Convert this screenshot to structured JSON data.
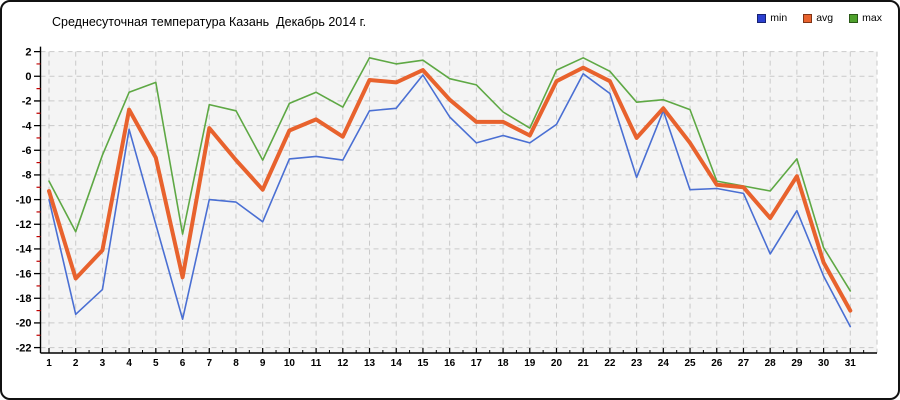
{
  "frame": {
    "title": "Среднесуточная температура Казань  Декабрь 2014 г."
  },
  "legend": [
    {
      "label": "min",
      "color": "#2b3fd0"
    },
    {
      "label": "avg",
      "color": "#e8622d"
    },
    {
      "label": "max",
      "color": "#4ea12c"
    }
  ],
  "chart_data": {
    "type": "line",
    "title": "Среднесуточная температура Казань  Декабрь 2014 г.",
    "x_tick_labels": [
      1,
      2,
      3,
      4,
      5,
      6,
      7,
      8,
      9,
      10,
      11,
      12,
      13,
      14,
      15,
      16,
      17,
      18,
      19,
      20,
      21,
      22,
      23,
      24,
      25,
      26,
      27,
      28,
      29,
      30,
      31
    ],
    "y_tick_labels": [
      2,
      0,
      -2,
      -4,
      -6,
      -8,
      -10,
      -12,
      -14,
      -16,
      -18,
      -20,
      -22
    ],
    "ylim": [
      -22,
      2
    ],
    "xlim": [
      1,
      31
    ],
    "grid": true,
    "legend_position": "top-right",
    "plot_bg": "#f4f4f4",
    "grid_color": "#c9c9c9",
    "axis_color": "#000000",
    "minor_tick_color": "#c00000",
    "series": [
      {
        "name": "max",
        "color": "#5ea844",
        "width": 1.6,
        "values": [
          -8.5,
          -12.6,
          -6.4,
          -1.3,
          -0.5,
          -12.8,
          -2.3,
          -2.8,
          -6.8,
          -2.2,
          -1.3,
          -2.5,
          1.5,
          1.0,
          1.3,
          -0.2,
          -0.7,
          -2.9,
          -4.2,
          0.5,
          1.5,
          0.4,
          -2.1,
          -1.9,
          -2.7,
          -8.5,
          -8.9,
          -9.3,
          -6.7,
          -13.9,
          -17.4
        ]
      },
      {
        "name": "min",
        "color": "#4a6fd3",
        "width": 1.6,
        "values": [
          -10.0,
          -19.3,
          -17.3,
          -4.3,
          -12.0,
          -19.7,
          -10.0,
          -10.2,
          -11.8,
          -6.7,
          -6.5,
          -6.8,
          -2.8,
          -2.6,
          0.1,
          -3.3,
          -5.4,
          -4.8,
          -5.4,
          -3.9,
          0.2,
          -1.4,
          -8.2,
          -2.8,
          -9.2,
          -9.1,
          -9.5,
          -14.4,
          -10.9,
          -16.2,
          -20.3
        ]
      },
      {
        "name": "avg",
        "color": "#e8622d",
        "width": 4,
        "values": [
          -9.3,
          -16.4,
          -14.1,
          -2.7,
          -6.6,
          -16.3,
          -4.2,
          -6.8,
          -9.2,
          -4.4,
          -3.5,
          -4.9,
          -0.3,
          -0.5,
          0.5,
          -1.9,
          -3.7,
          -3.7,
          -4.8,
          -0.4,
          0.7,
          -0.4,
          -5.0,
          -2.6,
          -5.4,
          -8.8,
          -9.0,
          -11.5,
          -8.1,
          -15.1,
          -19.0
        ]
      }
    ]
  }
}
